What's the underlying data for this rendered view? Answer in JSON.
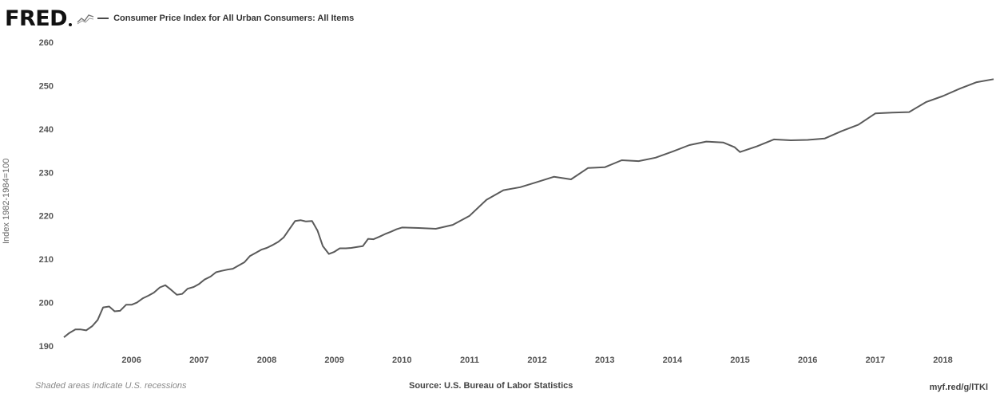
{
  "header": {
    "logo_text": "FRED",
    "legend_label": "Consumer Price Index for All Urban Consumers: All Items"
  },
  "footer": {
    "recession_note": "Shaded areas indicate U.S. recessions",
    "source": "Source: U.S. Bureau of Labor Statistics",
    "link": "myf.red/g/lTKl"
  },
  "colors": {
    "line": "#5a5a5a",
    "grid": "#e6e6e6",
    "axis_text": "#555555"
  },
  "chart_data": {
    "type": "line",
    "title": "",
    "ylabel": "Index 1982-1984=100",
    "xlabel": "",
    "ylim": [
      190,
      260
    ],
    "yticks": [
      190,
      200,
      210,
      220,
      230,
      240,
      250,
      260
    ],
    "xlim": [
      2005.0,
      2018.75
    ],
    "xticks": [
      "2006",
      "2007",
      "2008",
      "2009",
      "2010",
      "2011",
      "2012",
      "2013",
      "2014",
      "2015",
      "2016",
      "2017",
      "2018"
    ],
    "grid": false,
    "series": [
      {
        "name": "Consumer Price Index for All Urban Consumers: All Items",
        "x": [
          2005.0,
          2005.08,
          2005.17,
          2005.25,
          2005.33,
          2005.42,
          2005.5,
          2005.58,
          2005.67,
          2005.75,
          2005.83,
          2005.92,
          2006.0,
          2006.08,
          2006.17,
          2006.25,
          2006.33,
          2006.42,
          2006.5,
          2006.58,
          2006.67,
          2006.75,
          2006.83,
          2006.92,
          2007.0,
          2007.08,
          2007.17,
          2007.25,
          2007.33,
          2007.42,
          2007.5,
          2007.58,
          2007.67,
          2007.75,
          2007.83,
          2007.92,
          2008.0,
          2008.08,
          2008.17,
          2008.25,
          2008.33,
          2008.42,
          2008.5,
          2008.58,
          2008.67,
          2008.75,
          2008.83,
          2008.92,
          2009.0,
          2009.08,
          2009.17,
          2009.25,
          2009.33,
          2009.42,
          2009.5,
          2009.58,
          2009.67,
          2009.75,
          2009.83,
          2009.92,
          2010.0,
          2010.25,
          2010.5,
          2010.75,
          2011.0,
          2011.25,
          2011.5,
          2011.75,
          2012.0,
          2012.25,
          2012.5,
          2012.75,
          2013.0,
          2013.25,
          2013.5,
          2013.75,
          2014.0,
          2014.25,
          2014.5,
          2014.75,
          2014.92,
          2015.0,
          2015.25,
          2015.5,
          2015.75,
          2016.0,
          2016.25,
          2016.5,
          2016.75,
          2017.0,
          2017.25,
          2017.5,
          2017.75,
          2018.0,
          2018.25,
          2018.5,
          2018.75
        ],
        "values": [
          192.0,
          193.0,
          193.8,
          193.8,
          193.6,
          194.6,
          196.0,
          198.9,
          199.1,
          198.0,
          198.1,
          199.5,
          199.5,
          200.0,
          201.0,
          201.6,
          202.3,
          203.5,
          204.0,
          203.0,
          201.8,
          202.0,
          203.2,
          203.6,
          204.3,
          205.3,
          206.0,
          207.0,
          207.3,
          207.6,
          207.8,
          208.5,
          209.3,
          210.7,
          211.4,
          212.2,
          212.6,
          213.2,
          214.0,
          215.0,
          216.8,
          218.8,
          219.0,
          218.7,
          218.8,
          216.6,
          213.0,
          211.2,
          211.7,
          212.5,
          212.5,
          212.6,
          212.8,
          213.0,
          214.7,
          214.6,
          215.2,
          215.8,
          216.3,
          216.9,
          217.3,
          217.2,
          217.0,
          217.9,
          220.0,
          223.7,
          225.9,
          226.6,
          227.8,
          229.0,
          228.4,
          231.0,
          231.2,
          232.8,
          232.6,
          233.4,
          234.8,
          236.3,
          237.1,
          236.9,
          235.8,
          234.7,
          236.0,
          237.6,
          237.4,
          237.5,
          237.8,
          239.5,
          241.0,
          243.6,
          243.8,
          243.9,
          246.2,
          247.6,
          249.3,
          250.8,
          251.5
        ]
      }
    ]
  }
}
